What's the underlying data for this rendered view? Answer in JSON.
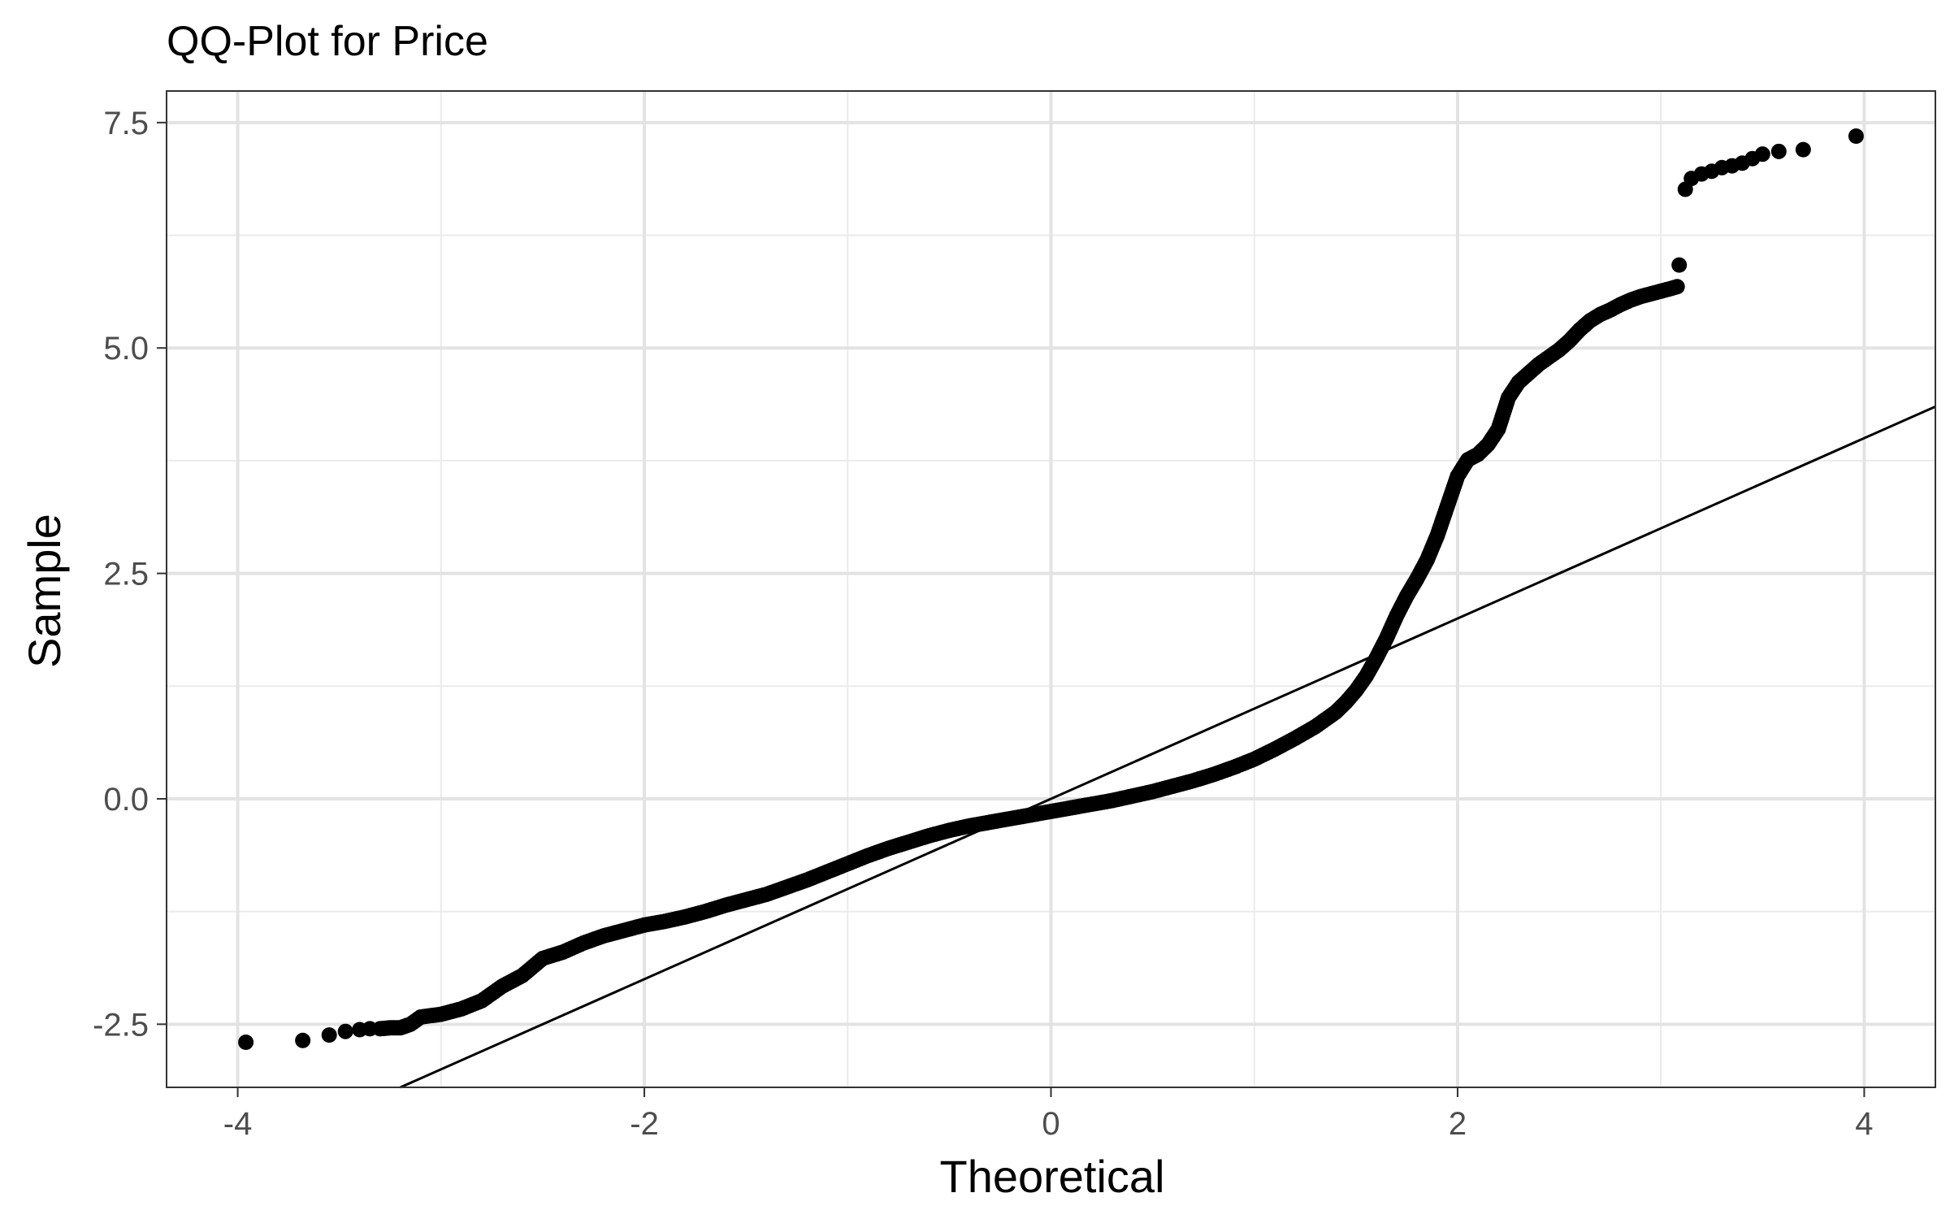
{
  "chart_data": {
    "type": "scatter",
    "title": "QQ-Plot for Price",
    "xlabel": "Theoretical",
    "ylabel": "Sample",
    "xlim": [
      -4.35,
      4.35
    ],
    "ylim": [
      -3.2,
      7.85
    ],
    "x_ticks": [
      -4,
      -2,
      0,
      2,
      4
    ],
    "x_tick_labels": [
      "-4",
      "-2",
      "0",
      "2",
      "4"
    ],
    "y_ticks": [
      -2.5,
      0.0,
      2.5,
      5.0,
      7.5
    ],
    "y_tick_labels": [
      "-2.5",
      "0.0",
      "2.5",
      "5.0",
      "7.5"
    ],
    "grid": true,
    "reference_line": {
      "slope": 1,
      "intercept": 0
    },
    "point_color": "#000000",
    "line_color": "#000000",
    "series": [
      {
        "points": [
          [
            -3.96,
            -2.7
          ],
          [
            -3.68,
            -2.68
          ],
          [
            -3.55,
            -2.62
          ],
          [
            -3.47,
            -2.58
          ],
          [
            -3.4,
            -2.56
          ],
          [
            -3.35,
            -2.55
          ],
          [
            -3.3,
            -2.55
          ],
          [
            -3.25,
            -2.54
          ],
          [
            -3.2,
            -2.54
          ],
          [
            -3.15,
            -2.5
          ],
          [
            -3.1,
            -2.42
          ],
          [
            -3.0,
            -2.39
          ],
          [
            -2.9,
            -2.33
          ],
          [
            -2.8,
            -2.24
          ],
          [
            -2.7,
            -2.08
          ],
          [
            -2.6,
            -1.96
          ],
          [
            -2.5,
            -1.77
          ],
          [
            -2.4,
            -1.7
          ],
          [
            -2.3,
            -1.6
          ],
          [
            -2.2,
            -1.52
          ],
          [
            -2.1,
            -1.46
          ],
          [
            -2.0,
            -1.4
          ],
          [
            -1.9,
            -1.36
          ],
          [
            -1.8,
            -1.31
          ],
          [
            -1.7,
            -1.25
          ],
          [
            -1.6,
            -1.18
          ],
          [
            -1.5,
            -1.12
          ],
          [
            -1.4,
            -1.06
          ],
          [
            -1.3,
            -0.98
          ],
          [
            -1.2,
            -0.9
          ],
          [
            -1.1,
            -0.81
          ],
          [
            -1.0,
            -0.72
          ],
          [
            -0.9,
            -0.63
          ],
          [
            -0.8,
            -0.55
          ],
          [
            -0.7,
            -0.48
          ],
          [
            -0.6,
            -0.41
          ],
          [
            -0.5,
            -0.35
          ],
          [
            -0.4,
            -0.3
          ],
          [
            -0.3,
            -0.26
          ],
          [
            -0.2,
            -0.22
          ],
          [
            -0.1,
            -0.18
          ],
          [
            0.0,
            -0.14
          ],
          [
            0.1,
            -0.1
          ],
          [
            0.2,
            -0.06
          ],
          [
            0.3,
            -0.02
          ],
          [
            0.4,
            0.03
          ],
          [
            0.5,
            0.08
          ],
          [
            0.6,
            0.14
          ],
          [
            0.7,
            0.2
          ],
          [
            0.8,
            0.27
          ],
          [
            0.9,
            0.35
          ],
          [
            1.0,
            0.44
          ],
          [
            1.1,
            0.55
          ],
          [
            1.2,
            0.67
          ],
          [
            1.3,
            0.8
          ],
          [
            1.4,
            0.96
          ],
          [
            1.45,
            1.07
          ],
          [
            1.5,
            1.2
          ],
          [
            1.55,
            1.36
          ],
          [
            1.6,
            1.56
          ],
          [
            1.65,
            1.78
          ],
          [
            1.7,
            2.03
          ],
          [
            1.75,
            2.25
          ],
          [
            1.8,
            2.44
          ],
          [
            1.85,
            2.65
          ],
          [
            1.9,
            2.92
          ],
          [
            1.95,
            3.25
          ],
          [
            2.0,
            3.58
          ],
          [
            2.05,
            3.76
          ],
          [
            2.1,
            3.82
          ],
          [
            2.15,
            3.93
          ],
          [
            2.2,
            4.1
          ],
          [
            2.25,
            4.45
          ],
          [
            2.3,
            4.62
          ],
          [
            2.35,
            4.72
          ],
          [
            2.4,
            4.82
          ],
          [
            2.45,
            4.9
          ],
          [
            2.5,
            4.98
          ],
          [
            2.55,
            5.08
          ],
          [
            2.6,
            5.2
          ],
          [
            2.65,
            5.3
          ],
          [
            2.7,
            5.37
          ],
          [
            2.75,
            5.42
          ],
          [
            2.8,
            5.48
          ],
          [
            2.85,
            5.53
          ],
          [
            2.9,
            5.57
          ],
          [
            2.95,
            5.6
          ],
          [
            3.0,
            5.63
          ],
          [
            3.05,
            5.66
          ],
          [
            3.08,
            5.68
          ],
          [
            3.09,
            5.92
          ],
          [
            3.12,
            6.76
          ],
          [
            3.15,
            6.88
          ],
          [
            3.2,
            6.93
          ],
          [
            3.25,
            6.96
          ],
          [
            3.3,
            7.0
          ],
          [
            3.35,
            7.02
          ],
          [
            3.4,
            7.05
          ],
          [
            3.45,
            7.1
          ],
          [
            3.5,
            7.15
          ],
          [
            3.58,
            7.18
          ],
          [
            3.7,
            7.2
          ],
          [
            3.96,
            7.35
          ]
        ]
      }
    ]
  }
}
